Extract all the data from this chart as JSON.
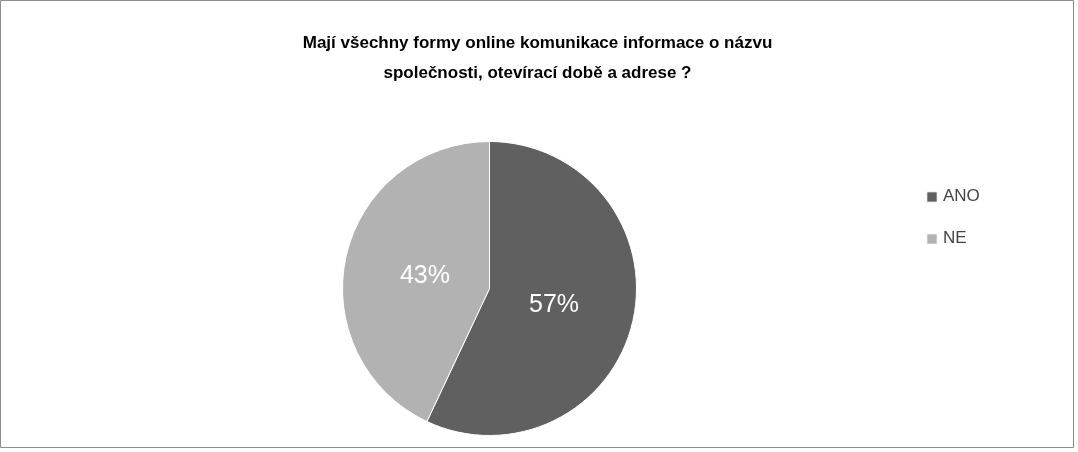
{
  "chart_data": {
    "type": "pie",
    "title": "Mají všechny formy online komunikace informace o názvu společnosti, otevírací době a adrese ?",
    "categories": [
      "ANO",
      "NE"
    ],
    "values": [
      57,
      43
    ],
    "colors": [
      "#606060",
      "#b2b2b2"
    ],
    "value_labels": [
      "57%",
      "43%"
    ],
    "legend": "right"
  }
}
